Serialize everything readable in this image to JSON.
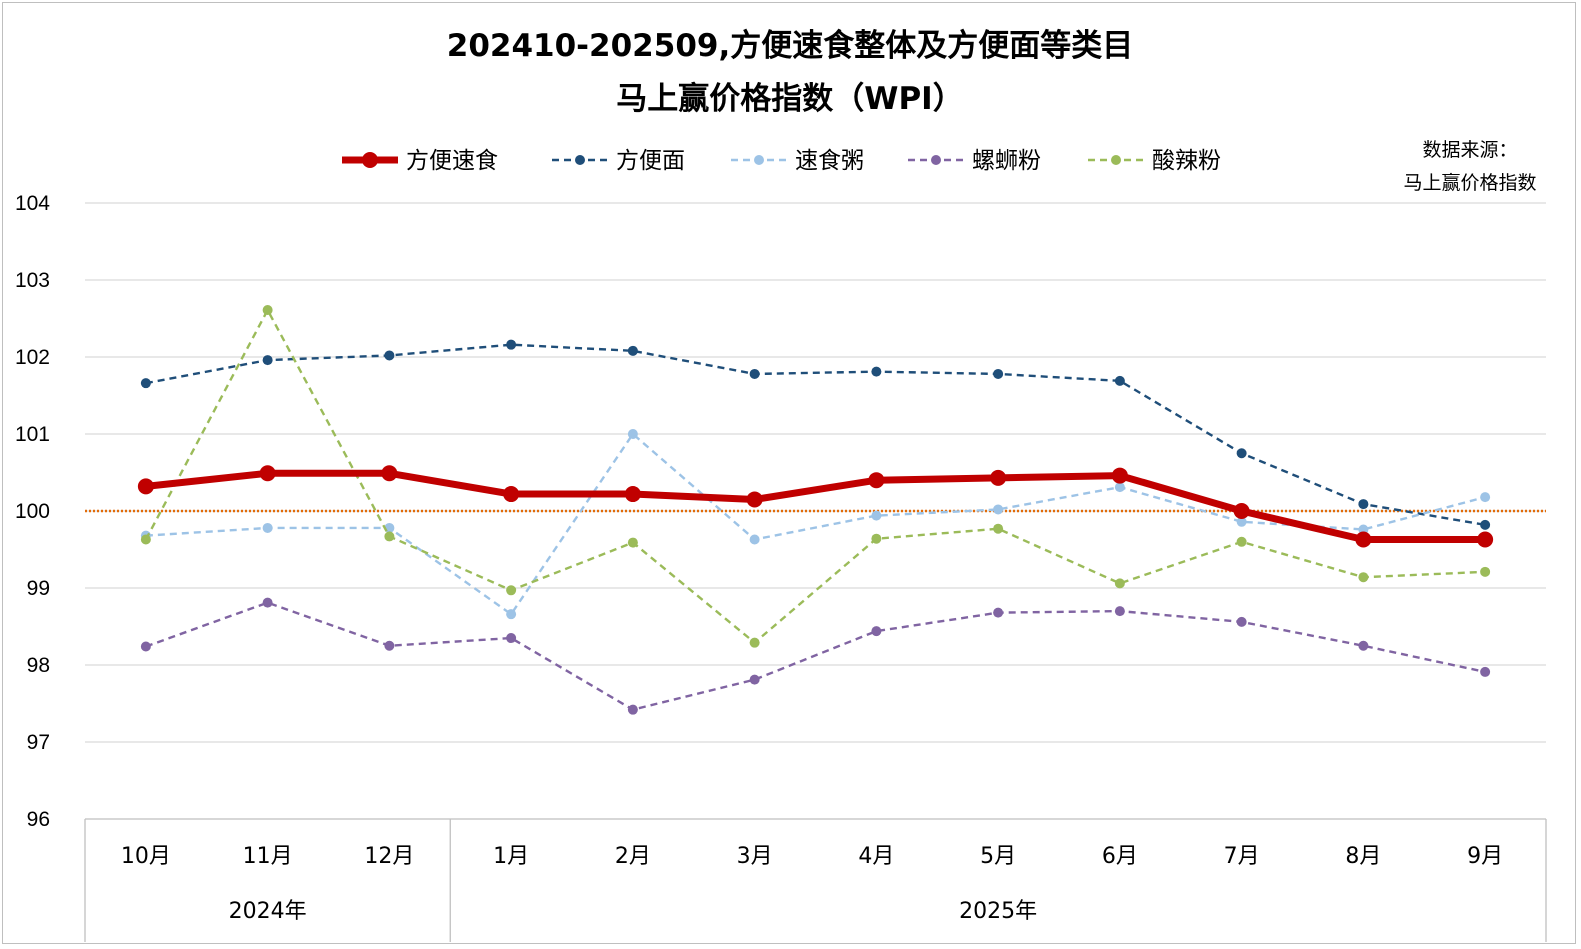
{
  "chart_data": {
    "type": "line",
    "title_line1": "202410-202509,方便速食整体及方便面等类目",
    "title_line2": "马上赢价格指数（WPI）",
    "source_label": "数据来源：",
    "source_name": "马上赢价格指数",
    "categories": [
      "10月",
      "11月",
      "12月",
      "1月",
      "2月",
      "3月",
      "4月",
      "5月",
      "6月",
      "7月",
      "8月",
      "9月"
    ],
    "year_groups": [
      {
        "label": "2024年",
        "count": 3
      },
      {
        "label": "2025年",
        "count": 9
      }
    ],
    "ylim": [
      96,
      104
    ],
    "yticks": [
      "96",
      "97",
      "98",
      "99",
      "100",
      "101",
      "102",
      "103",
      "104"
    ],
    "reference_line": 100,
    "reference_color": "#e36c09",
    "grid": true,
    "legend_position": "top",
    "series": [
      {
        "name": "方便速食",
        "color": "#c00000",
        "style": "solid-thick",
        "values": [
          100.32,
          100.49,
          100.49,
          100.22,
          100.22,
          100.15,
          100.4,
          100.43,
          100.46,
          100.0,
          99.63,
          99.63
        ]
      },
      {
        "name": "方便面",
        "color": "#1f4e79",
        "style": "dashed",
        "values": [
          101.66,
          101.96,
          102.02,
          102.16,
          102.08,
          101.78,
          101.81,
          101.78,
          101.69,
          100.75,
          100.09,
          99.82
        ]
      },
      {
        "name": "速食粥",
        "color": "#9dc3e6",
        "style": "dashed",
        "values": [
          99.68,
          99.78,
          99.78,
          98.66,
          101.0,
          99.63,
          99.94,
          100.02,
          100.31,
          99.86,
          99.76,
          100.18
        ]
      },
      {
        "name": "螺蛳粉",
        "color": "#8064a2",
        "style": "dashed",
        "values": [
          98.24,
          98.81,
          98.25,
          98.35,
          97.42,
          97.81,
          98.44,
          98.68,
          98.7,
          98.56,
          98.25,
          97.91
        ]
      },
      {
        "name": "酸辣粉",
        "color": "#9bbb59",
        "style": "dashed",
        "values": [
          99.63,
          102.61,
          99.67,
          98.97,
          99.59,
          98.29,
          99.64,
          99.77,
          99.06,
          99.6,
          99.14,
          99.21
        ]
      }
    ]
  }
}
